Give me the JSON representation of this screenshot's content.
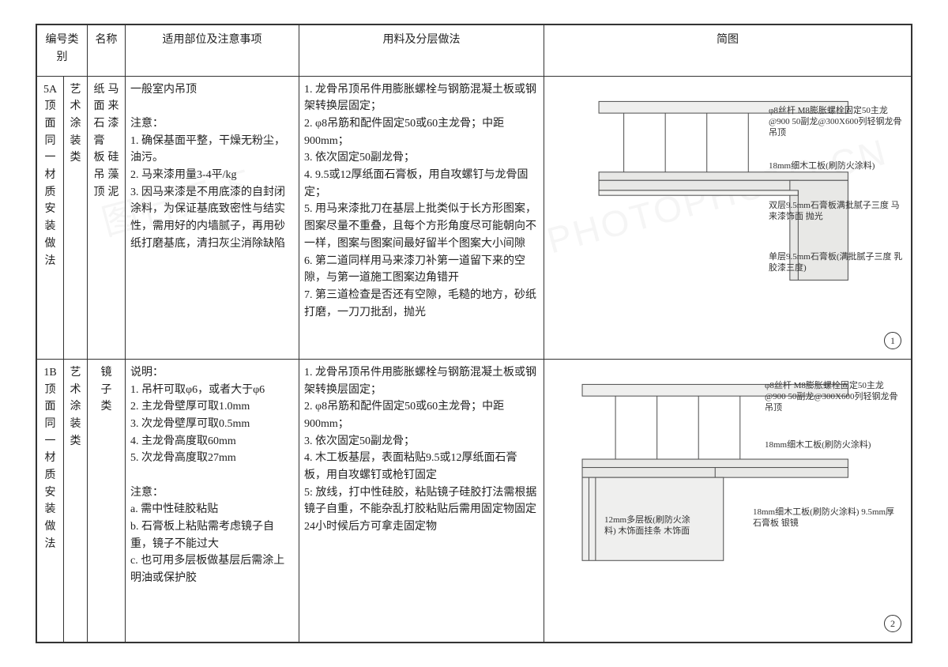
{
  "headers": {
    "id": "编号类别",
    "name": "名称",
    "note": "适用部位及注意事项",
    "method": "用料及分层做法",
    "figure": "简图"
  },
  "watermarks": {
    "left": "图行天下",
    "right": "PHOTOPHOTO.CN"
  },
  "rows": [
    {
      "id_line1": "5A",
      "id_rest": "顶面同一材质安装做法",
      "category": "艺术涂装类",
      "name_a": "纸面石膏板吊顶",
      "name_b": "马来漆　硅藻泥",
      "note": "一般室内吊顶\n\n注意：\n1. 确保基面平整，干燥无粉尘，油污。\n2. 马来漆用量3-4平/kg\n3. 因马来漆是不用底漆的自封闭涂料，为保证基底致密性与结实性，需用好的内墙腻子，再用砂纸打磨基底，清扫灰尘消除缺陷",
      "method": "1. 龙骨吊顶吊件用膨胀螺栓与钢筋混凝土板或钢架转换层固定；\n2. φ8吊筋和配件固定50或60主龙骨；中距900mm；\n3. 依次固定50副龙骨；\n4. 9.5或12厚纸面石膏板，用自攻螺钉与龙骨固定；\n5. 用马来漆批刀在基层上批类似于长方形图案，图案尽量不重叠，且每个方形角度尽可能朝向不一样，图案与图案间最好留半个图案大小间隙\n6. 第二道同样用马来漆刀补第一道留下来的空隙，与第一道施工图案边角错开\n7. 第三道检查是否还有空隙，毛糙的地方，砂纸打磨，一刀刀批刮，抛光",
      "figure": {
        "labels": [
          "φ8丝杆 M8膨胀螺栓固定50主龙@900 50副龙@300X600列轻钢龙骨吊顶",
          "18mm细木工板(刷防火涂料)",
          "双层9.5mm石膏板满批腻子三度 马来漆饰面 抛光",
          "单层9.5mm石膏板(满批腻子三度 乳胶漆三度)"
        ],
        "page": "1",
        "colors": {
          "line": "#555555",
          "fill": "#e9e9e7",
          "text": "#333333",
          "background": "#ffffff"
        }
      }
    },
    {
      "id_line1": "1B",
      "id_rest": "顶面同一材质安装做法",
      "category": "艺术涂装类",
      "name_a": "镜子类",
      "name_b": "",
      "note": "说明：\n1. 吊杆可取φ6，或者大于φ6\n2. 主龙骨壁厚可取1.0mm\n3. 次龙骨壁厚可取0.5mm\n4. 主龙骨高度取60mm\n5. 次龙骨高度取27mm\n\n注意：\na. 需中性硅胶粘贴\nb. 石膏板上粘贴需考虑镜子自重，镜子不能过大\nc. 也可用多层板做基层后需涂上明油或保护胶",
      "method": "1. 龙骨吊顶吊件用膨胀螺栓与钢筋混凝土板或钢架转换层固定；\n2. φ8吊筋和配件固定50或60主龙骨；中距900mm；\n3. 依次固定50副龙骨；\n4. 木工板基层，表面粘贴9.5或12厚纸面石膏板，用自攻螺钉或枪钉固定\n5: 放线，打中性硅胶，粘贴镜子硅胶打法需根据镜子自重，不能杂乱打胶粘贴后需用固定物固定24小时候后方可拿走固定物",
      "figure": {
        "labels": [
          "φ8丝杆 M8膨胀螺栓固定50主龙@900 50副龙@300X600列轻钢龙骨吊顶",
          "18mm细木工板(刷防火涂料)",
          "12mm多层板(刷防火涂料) 木饰面挂条 木饰面",
          "18mm细木工板(刷防火涂料) 9.5mm厚石膏板 银镜"
        ],
        "page": "2",
        "colors": {
          "line": "#555555",
          "fill": "#e9e9e7",
          "text": "#333333",
          "background": "#ffffff"
        }
      }
    }
  ]
}
